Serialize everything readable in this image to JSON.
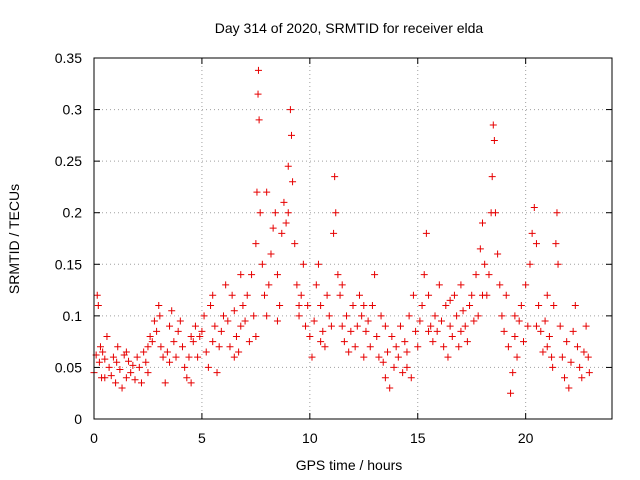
{
  "chart_data": {
    "type": "scatter",
    "title": "Day 314 of 2020, SRMTID for receiver elda",
    "xlabel": "GPS time / hours",
    "ylabel": "SRMTID / TECUs",
    "xlim": [
      0,
      24
    ],
    "ylim": [
      0,
      0.35
    ],
    "xticks": [
      0,
      5,
      10,
      15,
      20
    ],
    "xtick_labels": [
      "0",
      "5",
      "10",
      "15",
      "20"
    ],
    "yticks": [
      0,
      0.05,
      0.1,
      0.15,
      0.2,
      0.25,
      0.3,
      0.35
    ],
    "ytick_labels": [
      "0",
      "0.05",
      "0.1",
      "0.15",
      "0.2",
      "0.25",
      "0.3",
      "0.35"
    ],
    "grid": true,
    "marker": "+",
    "color": "#e60000",
    "series": [
      {
        "name": "SRMTID",
        "points": [
          [
            0.0,
            0.045
          ],
          [
            0.1,
            0.062
          ],
          [
            0.15,
            0.12
          ],
          [
            0.2,
            0.11
          ],
          [
            0.25,
            0.055
          ],
          [
            0.3,
            0.07
          ],
          [
            0.35,
            0.04
          ],
          [
            0.4,
            0.065
          ],
          [
            0.5,
            0.058
          ],
          [
            0.6,
            0.08
          ],
          [
            0.7,
            0.05
          ],
          [
            0.8,
            0.042
          ],
          [
            0.9,
            0.06
          ],
          [
            1.0,
            0.035
          ],
          [
            1.05,
            0.055
          ],
          [
            1.1,
            0.07
          ],
          [
            1.2,
            0.048
          ],
          [
            1.3,
            0.03
          ],
          [
            1.4,
            0.062
          ],
          [
            1.5,
            0.04
          ],
          [
            1.6,
            0.056
          ],
          [
            1.7,
            0.045
          ],
          [
            1.8,
            0.052
          ],
          [
            1.9,
            0.038
          ],
          [
            2.0,
            0.06
          ],
          [
            2.1,
            0.05
          ],
          [
            2.2,
            0.035
          ],
          [
            2.3,
            0.065
          ],
          [
            2.4,
            0.055
          ],
          [
            2.5,
            0.07
          ],
          [
            2.6,
            0.08
          ],
          [
            2.7,
            0.075
          ],
          [
            2.8,
            0.095
          ],
          [
            2.9,
            0.085
          ],
          [
            3.0,
            0.11
          ],
          [
            3.05,
            0.1
          ],
          [
            3.1,
            0.07
          ],
          [
            3.2,
            0.06
          ],
          [
            3.3,
            0.035
          ],
          [
            3.4,
            0.065
          ],
          [
            3.5,
            0.09
          ],
          [
            3.6,
            0.105
          ],
          [
            3.7,
            0.075
          ],
          [
            3.8,
            0.06
          ],
          [
            3.9,
            0.085
          ],
          [
            4.0,
            0.095
          ],
          [
            4.1,
            0.07
          ],
          [
            4.2,
            0.05
          ],
          [
            4.3,
            0.04
          ],
          [
            4.4,
            0.06
          ],
          [
            4.5,
            0.035
          ],
          [
            4.6,
            0.075
          ],
          [
            4.7,
            0.09
          ],
          [
            4.8,
            0.06
          ],
          [
            4.9,
            0.08
          ],
          [
            5.0,
            0.085
          ],
          [
            5.1,
            0.1
          ],
          [
            5.2,
            0.065
          ],
          [
            5.3,
            0.05
          ],
          [
            5.4,
            0.11
          ],
          [
            5.5,
            0.12
          ],
          [
            5.6,
            0.09
          ],
          [
            5.7,
            0.045
          ],
          [
            5.8,
            0.07
          ],
          [
            5.9,
            0.085
          ],
          [
            6.0,
            0.1
          ],
          [
            6.1,
            0.13
          ],
          [
            6.2,
            0.095
          ],
          [
            6.3,
            0.07
          ],
          [
            6.4,
            0.12
          ],
          [
            6.5,
            0.105
          ],
          [
            6.6,
            0.08
          ],
          [
            6.7,
            0.065
          ],
          [
            6.8,
            0.09
          ],
          [
            6.9,
            0.11
          ],
          [
            7.0,
            0.095
          ],
          [
            7.1,
            0.12
          ],
          [
            7.2,
            0.075
          ],
          [
            7.3,
            0.14
          ],
          [
            7.4,
            0.1
          ],
          [
            7.5,
            0.17
          ],
          [
            7.55,
            0.22
          ],
          [
            7.6,
            0.315
          ],
          [
            7.62,
            0.338
          ],
          [
            7.65,
            0.29
          ],
          [
            7.7,
            0.2
          ],
          [
            7.8,
            0.15
          ],
          [
            7.9,
            0.12
          ],
          [
            8.0,
            0.1
          ],
          [
            8.1,
            0.13
          ],
          [
            8.2,
            0.16
          ],
          [
            8.3,
            0.185
          ],
          [
            8.4,
            0.2
          ],
          [
            8.5,
            0.14
          ],
          [
            8.6,
            0.11
          ],
          [
            8.7,
            0.18
          ],
          [
            8.8,
            0.21
          ],
          [
            8.9,
            0.19
          ],
          [
            9.0,
            0.245
          ],
          [
            9.1,
            0.3
          ],
          [
            9.15,
            0.275
          ],
          [
            9.2,
            0.23
          ],
          [
            9.3,
            0.17
          ],
          [
            9.4,
            0.13
          ],
          [
            9.5,
            0.1
          ],
          [
            9.6,
            0.12
          ],
          [
            9.7,
            0.15
          ],
          [
            9.8,
            0.09
          ],
          [
            9.9,
            0.11
          ],
          [
            10.0,
            0.08
          ],
          [
            10.1,
            0.06
          ],
          [
            10.2,
            0.095
          ],
          [
            10.3,
            0.13
          ],
          [
            10.4,
            0.15
          ],
          [
            10.5,
            0.11
          ],
          [
            10.6,
            0.085
          ],
          [
            10.7,
            0.07
          ],
          [
            10.8,
            0.12
          ],
          [
            10.9,
            0.1
          ],
          [
            11.0,
            0.09
          ],
          [
            11.1,
            0.18
          ],
          [
            11.15,
            0.235
          ],
          [
            11.2,
            0.2
          ],
          [
            11.3,
            0.14
          ],
          [
            11.4,
            0.12
          ],
          [
            11.5,
            0.09
          ],
          [
            11.6,
            0.075
          ],
          [
            11.7,
            0.1
          ],
          [
            11.8,
            0.065
          ],
          [
            11.9,
            0.085
          ],
          [
            12.0,
            0.11
          ],
          [
            12.1,
            0.07
          ],
          [
            12.2,
            0.09
          ],
          [
            12.3,
            0.12
          ],
          [
            12.4,
            0.1
          ],
          [
            12.5,
            0.06
          ],
          [
            12.6,
            0.085
          ],
          [
            12.7,
            0.095
          ],
          [
            12.8,
            0.07
          ],
          [
            12.9,
            0.11
          ],
          [
            13.0,
            0.14
          ],
          [
            13.1,
            0.08
          ],
          [
            13.2,
            0.06
          ],
          [
            13.3,
            0.1
          ],
          [
            13.4,
            0.055
          ],
          [
            13.5,
            0.04
          ],
          [
            13.6,
            0.065
          ],
          [
            13.7,
            0.03
          ],
          [
            13.8,
            0.08
          ],
          [
            13.9,
            0.05
          ],
          [
            14.0,
            0.07
          ],
          [
            14.1,
            0.06
          ],
          [
            14.2,
            0.09
          ],
          [
            14.3,
            0.045
          ],
          [
            14.4,
            0.075
          ],
          [
            14.5,
            0.065
          ],
          [
            14.6,
            0.1
          ],
          [
            14.7,
            0.04
          ],
          [
            14.8,
            0.12
          ],
          [
            14.9,
            0.085
          ],
          [
            15.0,
            0.07
          ],
          [
            15.1,
            0.095
          ],
          [
            15.2,
            0.11
          ],
          [
            15.3,
            0.14
          ],
          [
            15.4,
            0.18
          ],
          [
            15.5,
            0.12
          ],
          [
            15.6,
            0.09
          ],
          [
            15.7,
            0.075
          ],
          [
            15.8,
            0.1
          ],
          [
            15.9,
            0.085
          ],
          [
            16.0,
            0.13
          ],
          [
            16.1,
            0.095
          ],
          [
            16.2,
            0.07
          ],
          [
            16.3,
            0.11
          ],
          [
            16.4,
            0.06
          ],
          [
            16.5,
            0.09
          ],
          [
            16.6,
            0.08
          ],
          [
            16.7,
            0.12
          ],
          [
            16.8,
            0.1
          ],
          [
            16.9,
            0.07
          ],
          [
            17.0,
            0.085
          ],
          [
            17.1,
            0.105
          ],
          [
            17.2,
            0.09
          ],
          [
            17.3,
            0.075
          ],
          [
            17.4,
            0.11
          ],
          [
            17.5,
            0.12
          ],
          [
            17.6,
            0.095
          ],
          [
            17.7,
            0.14
          ],
          [
            17.8,
            0.1
          ],
          [
            17.9,
            0.165
          ],
          [
            18.0,
            0.19
          ],
          [
            18.1,
            0.15
          ],
          [
            18.2,
            0.12
          ],
          [
            18.3,
            0.14
          ],
          [
            18.4,
            0.2
          ],
          [
            18.45,
            0.235
          ],
          [
            18.5,
            0.285
          ],
          [
            18.55,
            0.27
          ],
          [
            18.6,
            0.2
          ],
          [
            18.7,
            0.16
          ],
          [
            18.8,
            0.13
          ],
          [
            18.9,
            0.1
          ],
          [
            19.0,
            0.085
          ],
          [
            19.1,
            0.12
          ],
          [
            19.2,
            0.07
          ],
          [
            19.3,
            0.025
          ],
          [
            19.4,
            0.045
          ],
          [
            19.5,
            0.08
          ],
          [
            19.6,
            0.06
          ],
          [
            19.7,
            0.095
          ],
          [
            19.8,
            0.11
          ],
          [
            19.9,
            0.075
          ],
          [
            20.0,
            0.13
          ],
          [
            20.1,
            0.09
          ],
          [
            20.2,
            0.15
          ],
          [
            20.3,
            0.18
          ],
          [
            20.4,
            0.205
          ],
          [
            20.5,
            0.17
          ],
          [
            20.6,
            0.11
          ],
          [
            20.7,
            0.085
          ],
          [
            20.8,
            0.065
          ],
          [
            20.9,
            0.095
          ],
          [
            21.0,
            0.12
          ],
          [
            21.1,
            0.08
          ],
          [
            21.2,
            0.06
          ],
          [
            21.3,
            0.11
          ],
          [
            21.4,
            0.17
          ],
          [
            21.45,
            0.2
          ],
          [
            21.5,
            0.15
          ],
          [
            21.6,
            0.09
          ],
          [
            21.7,
            0.06
          ],
          [
            21.8,
            0.04
          ],
          [
            21.9,
            0.075
          ],
          [
            22.0,
            0.03
          ],
          [
            22.1,
            0.055
          ],
          [
            22.2,
            0.085
          ],
          [
            22.3,
            0.11
          ],
          [
            22.4,
            0.07
          ],
          [
            22.5,
            0.05
          ],
          [
            22.6,
            0.04
          ],
          [
            22.7,
            0.065
          ],
          [
            22.8,
            0.09
          ],
          [
            22.9,
            0.06
          ],
          [
            22.95,
            0.045
          ],
          [
            21.0,
            0.07
          ],
          [
            21.25,
            0.05
          ],
          [
            20.5,
            0.09
          ],
          [
            19.5,
            0.1
          ],
          [
            18.0,
            0.12
          ],
          [
            17.0,
            0.13
          ],
          [
            16.5,
            0.115
          ],
          [
            15.5,
            0.085
          ],
          [
            14.5,
            0.05
          ],
          [
            13.5,
            0.09
          ],
          [
            12.5,
            0.11
          ],
          [
            11.5,
            0.13
          ],
          [
            10.5,
            0.075
          ],
          [
            9.5,
            0.11
          ],
          [
            8.5,
            0.095
          ],
          [
            7.5,
            0.08
          ],
          [
            6.5,
            0.06
          ],
          [
            5.5,
            0.075
          ],
          [
            4.5,
            0.08
          ],
          [
            3.5,
            0.055
          ],
          [
            2.5,
            0.045
          ],
          [
            1.5,
            0.065
          ],
          [
            0.5,
            0.04
          ],
          [
            6.8,
            0.14
          ],
          [
            8.0,
            0.22
          ],
          [
            9.0,
            0.2
          ]
        ]
      }
    ]
  }
}
